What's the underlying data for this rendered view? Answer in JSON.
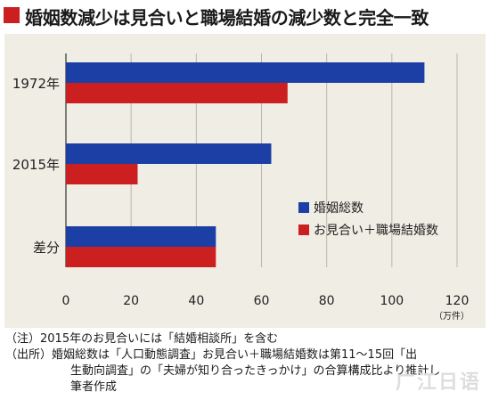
{
  "title": "婚姻数減少は見合いと職場結婚の減少数と完全一致",
  "chart_data": {
    "type": "bar",
    "orientation": "horizontal",
    "categories": [
      "1972年",
      "2015年",
      "差分"
    ],
    "series": [
      {
        "name": "婚姻総数",
        "color": "#1c3fa6",
        "values": [
          110,
          63,
          46
        ]
      },
      {
        "name": "お見合い＋職場結婚数",
        "color": "#cc1f1f",
        "values": [
          68,
          22,
          46
        ]
      }
    ],
    "xlim": [
      0,
      120
    ],
    "xticks": [
      "0",
      "20",
      "40",
      "60",
      "80",
      "100",
      "120"
    ],
    "unit_label": "（万件）",
    "grid": true,
    "legend_position": "right"
  },
  "notes": [
    "（注）2015年のお見合いには「結婚相談所」を含む",
    "（出所）婚姻総数は「人口動態調査」お見合い＋職場結婚数は第11～15回「出",
    "生動向調査」の「夫婦が知り合ったきっかけ」の合算構成比より推計し",
    "筆者作成"
  ],
  "watermark": "广江日语"
}
